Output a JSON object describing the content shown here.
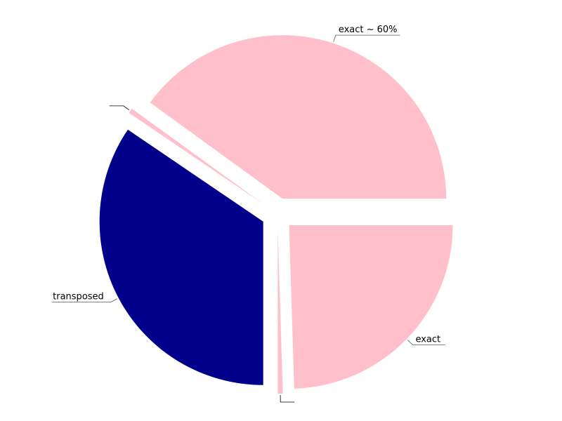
{
  "chart_data": {
    "type": "pie",
    "slices": [
      {
        "label": "exact ~ 60%",
        "value": 40,
        "color": "#FFC0CB",
        "exploded": true
      },
      {
        "label": "",
        "value": 0.5,
        "color": "#FFC0CB",
        "exploded": true
      },
      {
        "label": "transposed",
        "value": 34.5,
        "color": "#00008B",
        "exploded": true
      },
      {
        "label": "",
        "value": 0.5,
        "color": "#FFC0CB",
        "exploded": true
      },
      {
        "label": "exact",
        "value": 24.5,
        "color": "#FFC0CB",
        "exploded": true
      }
    ],
    "start_angle_deg": 0,
    "direction": "counterclockwise",
    "legend": "none",
    "labels_with_leader_lines": true
  }
}
